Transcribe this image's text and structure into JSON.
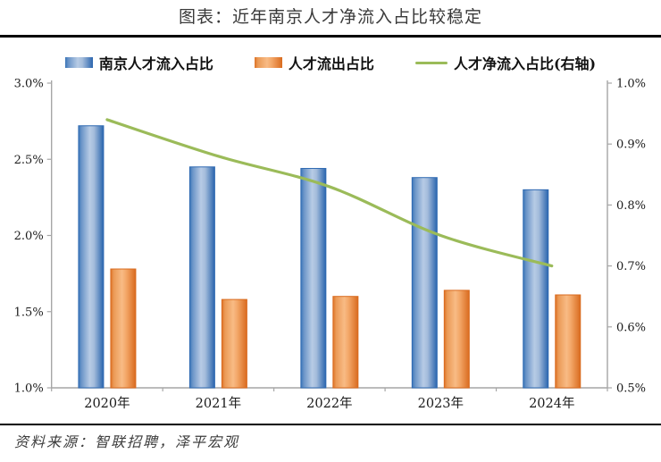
{
  "title": "图表：近年南京人才净流入占比较稳定",
  "legend": {
    "items": [
      {
        "label": "南京人才流入占比",
        "type": "bar",
        "color": "#4076b8"
      },
      {
        "label": "人才流出占比",
        "type": "bar",
        "color": "#e0762a"
      },
      {
        "label": "人才净流入占比(右轴)",
        "type": "line",
        "color": "#9bbb59"
      }
    ]
  },
  "chart_data": {
    "type": "bar",
    "subtype": "grouped-bars-with-line-combo",
    "title": "图表：近年南京人才净流入占比较稳定",
    "categories": [
      "2020年",
      "2021年",
      "2022年",
      "2023年",
      "2024年"
    ],
    "series": [
      {
        "name": "南京人才流入占比",
        "type": "bar",
        "axis": "left",
        "values": [
          2.72,
          2.45,
          2.44,
          2.38,
          2.3
        ],
        "color_edge": "#2f6ab2",
        "color_light": "#b7cbe5"
      },
      {
        "name": "人才流出占比",
        "type": "bar",
        "axis": "left",
        "values": [
          1.78,
          1.58,
          1.6,
          1.64,
          1.61
        ],
        "color_edge": "#d96b1f",
        "color_light": "#f8bb85"
      },
      {
        "name": "人才净流入占比(右轴)",
        "type": "line",
        "axis": "right",
        "values": [
          0.94,
          0.88,
          0.83,
          0.75,
          0.7
        ],
        "color": "#9bbb59"
      }
    ],
    "left_axis": {
      "min": 1.0,
      "max": 3.0,
      "tick_step": 0.5,
      "ticks": [
        "3.0%",
        "2.5%",
        "2.0%",
        "1.5%",
        "1.0%"
      ]
    },
    "right_axis": {
      "min": 0.5,
      "max": 1.0,
      "tick_step": 0.1,
      "ticks": [
        "1.0%",
        "0.9%",
        "0.8%",
        "0.7%",
        "0.6%",
        "0.5%"
      ]
    },
    "grid": false,
    "legend_position": "top",
    "axis_color": "#a6a6a6",
    "tick_label_color": "#1a1a1a"
  },
  "footer": {
    "source_note": "资料来源：智联招聘，泽平宏观"
  }
}
